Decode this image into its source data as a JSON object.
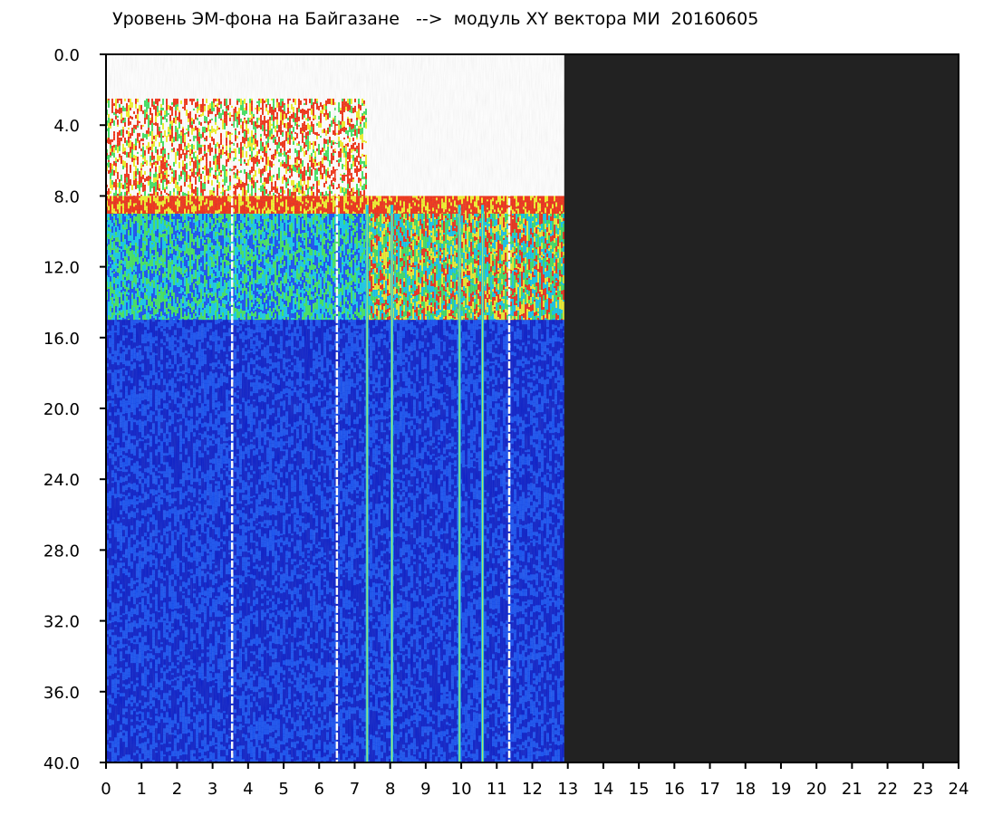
{
  "chart_data": {
    "type": "heatmap",
    "title": "Уровень ЭМ-фона на Байгазане   -->  модуль XY вектора МИ  20160605",
    "xlabel": "",
    "ylabel": "",
    "x_ticks": [
      "0",
      "1",
      "2",
      "3",
      "4",
      "5",
      "6",
      "7",
      "8",
      "9",
      "10",
      "11",
      "12",
      "13",
      "14",
      "15",
      "16",
      "17",
      "18",
      "19",
      "20",
      "21",
      "22",
      "23",
      "24"
    ],
    "y_ticks": [
      "0.0",
      "4.0",
      "8.0",
      "12.0",
      "16.0",
      "20.0",
      "24.0",
      "28.0",
      "32.0",
      "36.0",
      "40.0"
    ],
    "xlim": [
      0,
      24
    ],
    "ylim": [
      0,
      40
    ],
    "y_inverted": true,
    "data_end_x": 12.9,
    "no_data_color": "#222222",
    "colormap": [
      "#0a1ec8",
      "#1650f0",
      "#14c8e6",
      "#40e060",
      "#f0f028",
      "#f03014"
    ],
    "bands": [
      {
        "y_from": 2.5,
        "y_to": 8.0,
        "level": "red-yellow",
        "x_from": 0,
        "x_to": 7.3
      },
      {
        "y_from": 8.0,
        "y_to": 9.0,
        "level": "red",
        "x_from": 0,
        "x_to": 12.9
      },
      {
        "y_from": 9.0,
        "y_to": 15.0,
        "level": "cyan-green",
        "x_from": 0,
        "x_to": 7.4
      },
      {
        "y_from": 9.0,
        "y_to": 15.0,
        "level": "green-yellow",
        "x_from": 7.4,
        "x_to": 12.9
      },
      {
        "y_from": 15.0,
        "y_to": 40.0,
        "level": "blue",
        "x_from": 0,
        "x_to": 12.9
      }
    ],
    "gaps_x": [
      3.55,
      6.5,
      11.35
    ],
    "spikes_x": [
      7.35,
      8.05,
      9.95,
      10.6
    ]
  }
}
